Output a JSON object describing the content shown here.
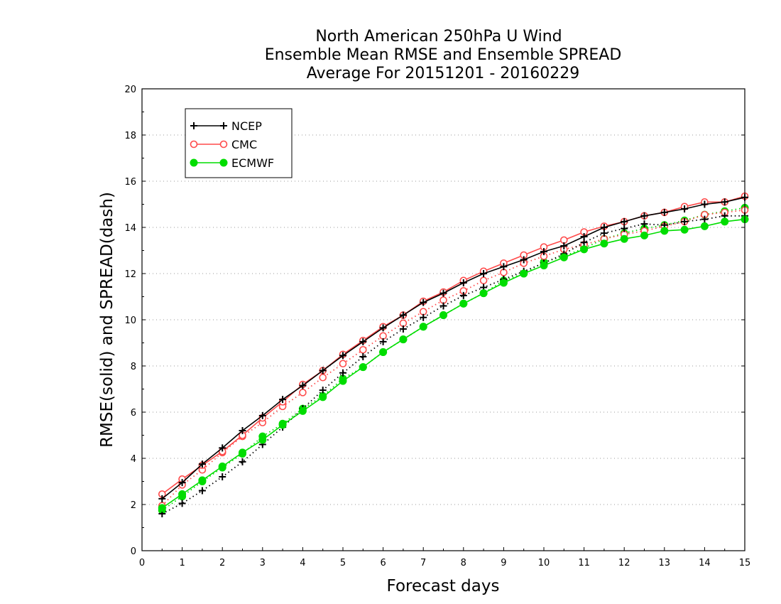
{
  "chart_data": {
    "type": "line",
    "title": [
      "North American 250hPa U Wind",
      "Ensemble Mean RMSE and Ensemble SPREAD",
      "Average For 20151201 - 20160229"
    ],
    "xlabel": "Forecast days",
    "ylabel": "RMSE(solid) and SPREAD(dash)",
    "xlim": [
      0,
      15
    ],
    "ylim": [
      0,
      20
    ],
    "xticks": [
      "0",
      "1",
      "2",
      "3",
      "4",
      "5",
      "6",
      "7",
      "8",
      "9",
      "10",
      "11",
      "12",
      "13",
      "14",
      "15"
    ],
    "yticks": [
      "0",
      "2",
      "4",
      "6",
      "8",
      "10",
      "12",
      "14",
      "16",
      "18",
      "20"
    ],
    "grid": "dotted horizontal",
    "legend_position": "top-left",
    "x": [
      0.5,
      1,
      1.5,
      2,
      2.5,
      3,
      3.5,
      4,
      4.5,
      5,
      5.5,
      6,
      6.5,
      7,
      7.5,
      8,
      8.5,
      9,
      9.5,
      10,
      10.5,
      11,
      11.5,
      12,
      12.5,
      13,
      13.5,
      14,
      14.5,
      15
    ],
    "series": [
      {
        "name": "NCEP",
        "color": "#000000",
        "marker": "plus",
        "rmse": [
          2.25,
          2.95,
          3.75,
          4.45,
          5.2,
          5.85,
          6.55,
          7.15,
          7.8,
          8.45,
          9.05,
          9.65,
          10.2,
          10.75,
          11.15,
          11.6,
          12.0,
          12.3,
          12.6,
          12.95,
          13.2,
          13.6,
          14.0,
          14.25,
          14.5,
          14.65,
          14.8,
          15.0,
          15.1,
          15.3
        ],
        "spread": [
          1.6,
          2.05,
          2.6,
          3.2,
          3.85,
          4.6,
          5.35,
          6.15,
          6.95,
          7.7,
          8.4,
          9.05,
          9.6,
          10.1,
          10.6,
          11.05,
          11.4,
          11.75,
          12.1,
          12.45,
          12.85,
          13.35,
          13.75,
          13.95,
          14.15,
          14.1,
          14.25,
          14.35,
          14.5,
          14.5
        ]
      },
      {
        "name": "CMC",
        "color": "#ff4a4a",
        "marker": "circle-open",
        "rmse": [
          2.45,
          3.1,
          3.7,
          4.3,
          5.0,
          5.75,
          6.45,
          7.2,
          7.8,
          8.5,
          9.1,
          9.7,
          10.2,
          10.8,
          11.2,
          11.7,
          12.1,
          12.45,
          12.8,
          13.15,
          13.45,
          13.8,
          14.05,
          14.25,
          14.5,
          14.65,
          14.9,
          15.1,
          15.1,
          15.35
        ],
        "spread": [
          1.95,
          2.85,
          3.5,
          4.25,
          4.95,
          5.55,
          6.25,
          6.85,
          7.5,
          8.1,
          8.7,
          9.3,
          9.85,
          10.35,
          10.85,
          11.25,
          11.7,
          12.05,
          12.45,
          12.75,
          13.05,
          13.25,
          13.5,
          13.7,
          13.85,
          14.05,
          14.25,
          14.55,
          14.65,
          14.75
        ]
      },
      {
        "name": "ECMWF",
        "color": "#00dd00",
        "marker": "circle-filled",
        "rmse": [
          1.85,
          2.45,
          3.05,
          3.65,
          4.25,
          4.8,
          5.45,
          6.05,
          6.65,
          7.35,
          7.95,
          8.6,
          9.15,
          9.7,
          10.2,
          10.7,
          11.15,
          11.6,
          12.0,
          12.35,
          12.7,
          13.05,
          13.3,
          13.5,
          13.65,
          13.85,
          13.9,
          14.05,
          14.25,
          14.35
        ],
        "spread": [
          1.75,
          2.35,
          3.0,
          3.6,
          4.2,
          4.95,
          5.5,
          6.15,
          6.7,
          7.45,
          7.95,
          8.6,
          9.15,
          9.7,
          10.2,
          10.7,
          11.15,
          11.7,
          12.0,
          12.5,
          12.75,
          13.1,
          13.5,
          13.75,
          13.95,
          14.1,
          14.3,
          14.55,
          14.7,
          14.85
        ]
      }
    ]
  }
}
